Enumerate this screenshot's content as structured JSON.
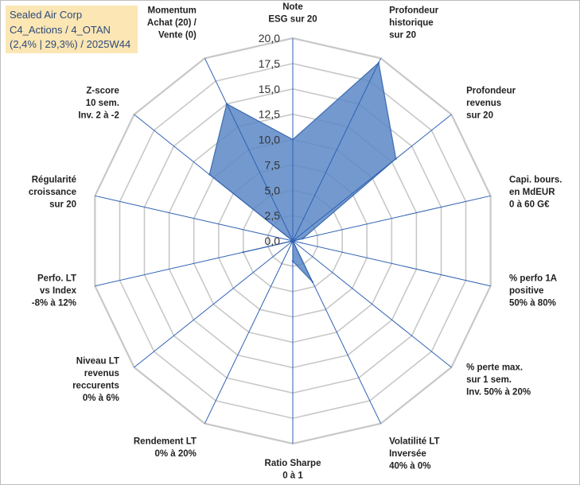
{
  "title_box": {
    "line1": "Sealed Air Corp",
    "line2": "C4_Actions / 4_OTAN",
    "line3": "(2,4% | 29,3%) / 2025W44"
  },
  "colors": {
    "fill": "#5b87c5",
    "stroke": "#3d6db0",
    "grid": "#c8c8c8",
    "spoke": "#2f62b3",
    "title_bg": "#fbe6b4"
  },
  "chart_data": {
    "type": "radar",
    "title": "",
    "range": [
      0,
      20
    ],
    "ticks": [
      "0,0",
      "2,5",
      "5,0",
      "7,5",
      "10,0",
      "12,5",
      "15,0",
      "17,5",
      "20,0"
    ],
    "grid_rings": 8,
    "axes": [
      {
        "lines": [
          "Note",
          "ESG sur 20"
        ]
      },
      {
        "lines": [
          "Profondeur",
          "historique",
          "sur 20"
        ]
      },
      {
        "lines": [
          "Profondeur",
          "revenus",
          "sur 20"
        ]
      },
      {
        "lines": [
          "Capi. bours.",
          "en MdEUR",
          "0 à 60 G€"
        ]
      },
      {
        "lines": [
          "% perfo 1A",
          "positive",
          "50% à 80%"
        ]
      },
      {
        "lines": [
          "% perte max.",
          "sur 1 sem.",
          "Inv. 50% à 20%"
        ]
      },
      {
        "lines": [
          "Volatilité LT",
          "Inversée",
          "40% à 0%"
        ]
      },
      {
        "lines": [
          "Ratio Sharpe",
          "0 à 1"
        ]
      },
      {
        "lines": [
          "Rendement LT",
          "0% à 20%"
        ]
      },
      {
        "lines": [
          "Niveau LT",
          "revenus",
          "reccurents",
          "0% à 6%"
        ]
      },
      {
        "lines": [
          "Perfo. LT",
          "vs Index",
          "-8% à 12%"
        ]
      },
      {
        "lines": [
          "Régularité",
          "croissance",
          "sur 20"
        ]
      },
      {
        "lines": [
          "Z-score",
          "10 sem.",
          "Inv. 2 à -2"
        ]
      },
      {
        "lines": [
          "Momentum",
          "Achat (20) /",
          "Vente (0)"
        ]
      }
    ],
    "series": [
      {
        "name": "Sealed Air Corp",
        "values": [
          10.0,
          19.5,
          13.0,
          1.0,
          0.0,
          0.0,
          4.5,
          2.0,
          0.0,
          0.0,
          5.0,
          0.0,
          10.5,
          15.0
        ]
      }
    ]
  }
}
